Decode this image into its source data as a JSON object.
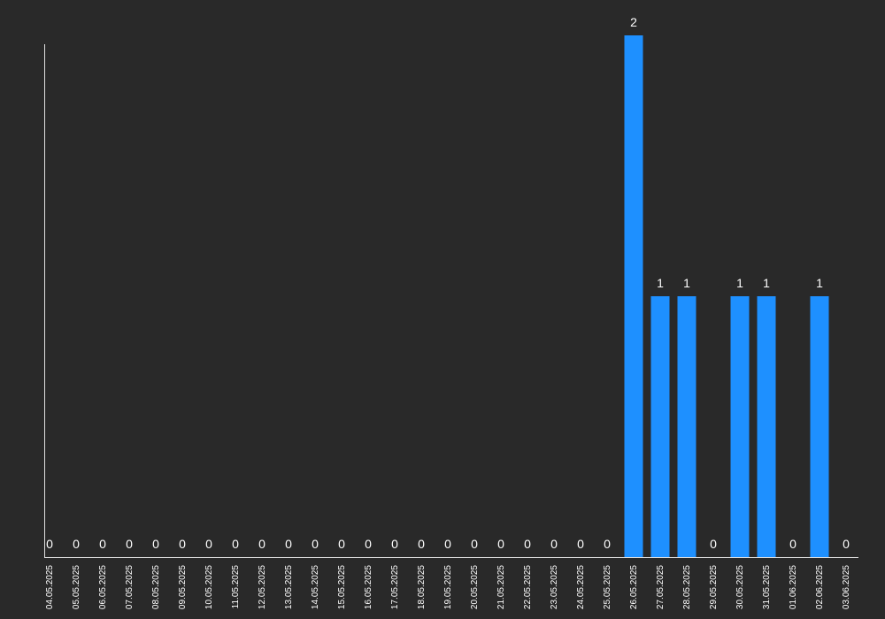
{
  "chart_data": {
    "type": "bar",
    "title": "",
    "xlabel": "",
    "ylabel": "",
    "ylim": [
      0,
      2
    ],
    "grid": false,
    "legend": "none",
    "bar_color": "#1e90ff",
    "background": "#292929",
    "text_color": "#ffffff",
    "axis_color": "#e0e0e0",
    "categories": [
      "04.05.2025",
      "05.05.2025",
      "06.05.2025",
      "07.05.2025",
      "08.05.2025",
      "09.05.2025",
      "10.05.2025",
      "11.05.2025",
      "12.05.2025",
      "13.05.2025",
      "14.05.2025",
      "15.05.2025",
      "16.05.2025",
      "17.05.2025",
      "18.05.2025",
      "19.05.2025",
      "20.05.2025",
      "21.05.2025",
      "22.05.2025",
      "23.05.2025",
      "24.05.2025",
      "25.05.2025",
      "26.05.2025",
      "27.05.2025",
      "28.05.2025",
      "29.05.2025",
      "30.05.2025",
      "31.05.2025",
      "01.06.2025",
      "02.06.2025",
      "03.06.2025"
    ],
    "values": [
      0,
      0,
      0,
      0,
      0,
      0,
      0,
      0,
      0,
      0,
      0,
      0,
      0,
      0,
      0,
      0,
      0,
      0,
      0,
      0,
      0,
      0,
      2,
      1,
      1,
      0,
      1,
      1,
      0,
      1,
      0
    ]
  }
}
